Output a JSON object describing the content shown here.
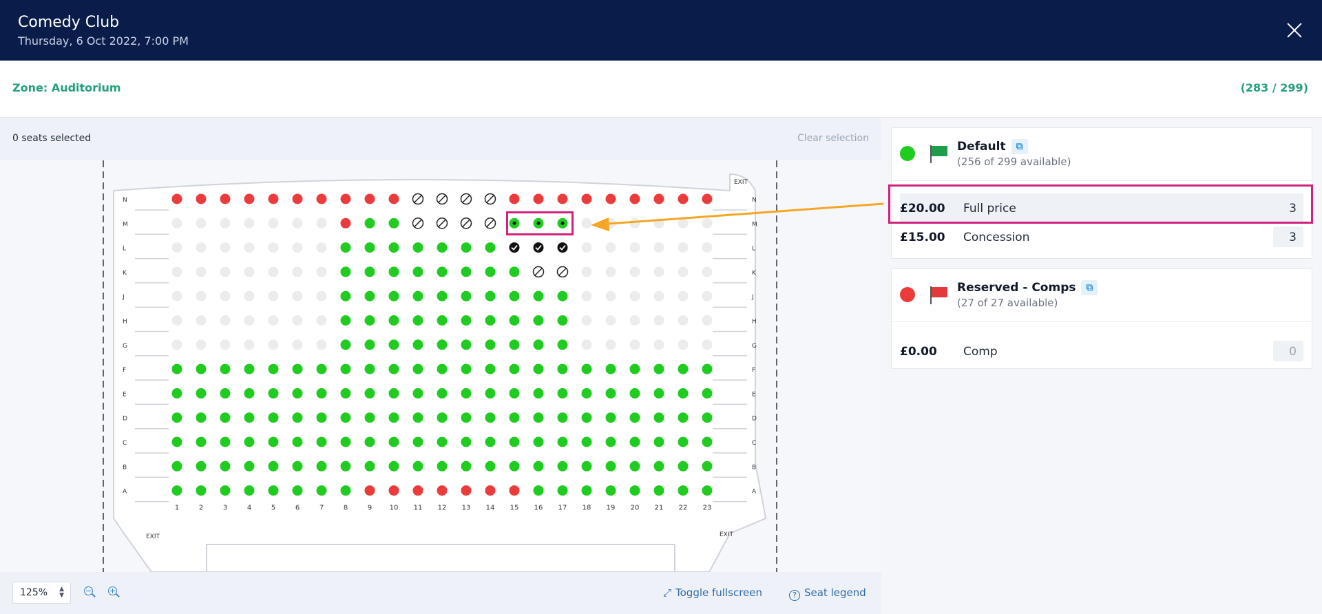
{
  "header": {
    "title": "Comedy Club",
    "subtitle": "Thursday, 6 Oct 2022, 7:00 PM",
    "close_icon": "close-icon"
  },
  "zone": {
    "label": "Zone: Auditorium",
    "count": "(283 / 299)"
  },
  "selection": {
    "text": "0 seats selected",
    "clear_label": "Clear selection"
  },
  "footer": {
    "zoom_value": "125%",
    "fullscreen_label": "Toggle fullscreen",
    "legend_label": "Seat legend"
  },
  "colors": {
    "available": "#1fcc1f",
    "reserved": "#ec3b3b",
    "unavailable": "#ececec",
    "sold": "#111111",
    "accent": "#23a07e",
    "header": "#0a1d4a",
    "annotation": "#d1217c",
    "arrow": "#f5a623"
  },
  "seatmap": {
    "rows": [
      "N",
      "M",
      "L",
      "K",
      "J",
      "H",
      "G",
      "F",
      "E",
      "D",
      "C",
      "B",
      "A"
    ],
    "columns": [
      "1",
      "2",
      "3",
      "4",
      "5",
      "6",
      "7",
      "8",
      "9",
      "10",
      "11",
      "12",
      "13",
      "14",
      "15",
      "16",
      "17",
      "18",
      "19",
      "20",
      "21",
      "22",
      "23"
    ],
    "status": {
      "N": [
        "r",
        "r",
        "r",
        "r",
        "r",
        "r",
        "r",
        "r",
        "r",
        "r",
        "x",
        "x",
        "x",
        "x",
        "r",
        "r",
        "r",
        "r",
        "r",
        "r",
        "r",
        "r",
        "r"
      ],
      "M": [
        "u",
        "u",
        "u",
        "u",
        "u",
        "u",
        "u",
        "r",
        "g",
        "g",
        "x",
        "x",
        "x",
        "x",
        "s",
        "s",
        "s",
        "u",
        "u",
        "u",
        "u",
        "u",
        "u"
      ],
      "L": [
        "u",
        "u",
        "u",
        "u",
        "u",
        "u",
        "u",
        "g",
        "g",
        "g",
        "g",
        "g",
        "g",
        "g",
        "c",
        "c",
        "c",
        "u",
        "u",
        "u",
        "u",
        "u",
        "u"
      ],
      "K": [
        "u",
        "u",
        "u",
        "u",
        "u",
        "u",
        "u",
        "g",
        "g",
        "g",
        "g",
        "g",
        "g",
        "g",
        "g",
        "x",
        "x",
        "u",
        "u",
        "u",
        "u",
        "u",
        "u"
      ],
      "J": [
        "u",
        "u",
        "u",
        "u",
        "u",
        "u",
        "u",
        "g",
        "g",
        "g",
        "g",
        "g",
        "g",
        "g",
        "g",
        "g",
        "g",
        "u",
        "u",
        "u",
        "u",
        "u",
        "u"
      ],
      "H": [
        "u",
        "u",
        "u",
        "u",
        "u",
        "u",
        "u",
        "g",
        "g",
        "g",
        "g",
        "g",
        "g",
        "g",
        "g",
        "g",
        "g",
        "u",
        "u",
        "u",
        "u",
        "u",
        "u"
      ],
      "G": [
        "u",
        "u",
        "u",
        "u",
        "u",
        "u",
        "u",
        "g",
        "g",
        "g",
        "g",
        "g",
        "g",
        "g",
        "g",
        "g",
        "g",
        "u",
        "u",
        "u",
        "u",
        "u",
        "u"
      ],
      "F": [
        "g",
        "g",
        "g",
        "g",
        "g",
        "g",
        "g",
        "g",
        "g",
        "g",
        "g",
        "g",
        "g",
        "g",
        "g",
        "g",
        "g",
        "g",
        "g",
        "g",
        "g",
        "g",
        "g"
      ],
      "E": [
        "g",
        "g",
        "g",
        "g",
        "g",
        "g",
        "g",
        "g",
        "g",
        "g",
        "g",
        "g",
        "g",
        "g",
        "g",
        "g",
        "g",
        "g",
        "g",
        "g",
        "g",
        "g",
        "g"
      ],
      "D": [
        "g",
        "g",
        "g",
        "g",
        "g",
        "g",
        "g",
        "g",
        "g",
        "g",
        "g",
        "g",
        "g",
        "g",
        "g",
        "g",
        "g",
        "g",
        "g",
        "g",
        "g",
        "g",
        "g"
      ],
      "C": [
        "g",
        "g",
        "g",
        "g",
        "g",
        "g",
        "g",
        "g",
        "g",
        "g",
        "g",
        "g",
        "g",
        "g",
        "g",
        "g",
        "g",
        "g",
        "g",
        "g",
        "g",
        "g",
        "g"
      ],
      "B": [
        "g",
        "g",
        "g",
        "g",
        "g",
        "g",
        "g",
        "g",
        "g",
        "g",
        "g",
        "g",
        "g",
        "g",
        "g",
        "g",
        "g",
        "g",
        "g",
        "g",
        "g",
        "g",
        "g"
      ],
      "A": [
        "g",
        "g",
        "g",
        "g",
        "g",
        "g",
        "g",
        "g",
        "r",
        "r",
        "r",
        "r",
        "r",
        "r",
        "r",
        "g",
        "g",
        "g",
        "g",
        "g",
        "g",
        "g",
        "g"
      ]
    },
    "exit_label": "EXIT"
  },
  "price_groups": [
    {
      "name": "Default",
      "availability": "(256 of 299 available)",
      "color": "#1fcc1f",
      "flag_color": "#1f9e4a",
      "prices": [
        {
          "price": "£20.00",
          "name": "Full price",
          "qty": "3"
        },
        {
          "price": "£15.00",
          "name": "Concession",
          "qty": "3"
        }
      ]
    },
    {
      "name": "Reserved - Comps",
      "availability": "(27 of 27 available)",
      "color": "#ec3b3b",
      "flag_color": "#e23a3a",
      "prices": [
        {
          "price": "£0.00",
          "name": "Comp",
          "qty": "0"
        }
      ]
    }
  ]
}
